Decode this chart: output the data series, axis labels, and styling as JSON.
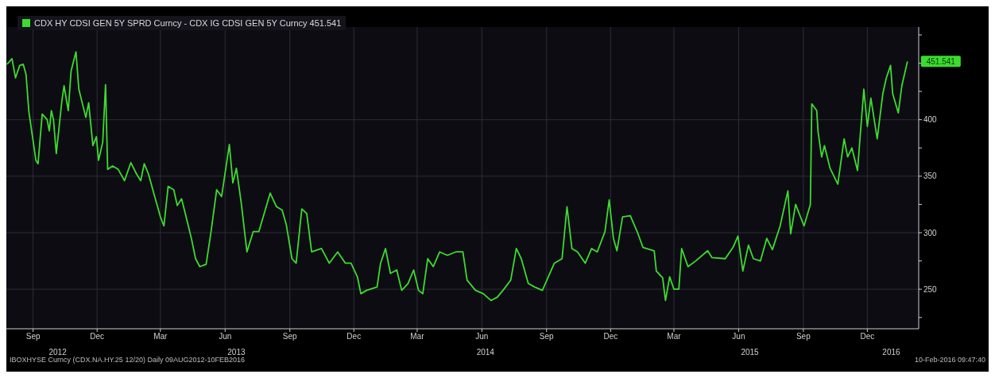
{
  "chart_data": {
    "type": "line",
    "legend": "top left",
    "grid": true,
    "marker": "none",
    "line_style": "solid",
    "xlim": [
      "2012-08-08",
      "2016-02-26"
    ],
    "xticks": [
      {
        "value": "2012-09-15",
        "label": "Sep"
      },
      {
        "value": "2012-12-15",
        "label": "Dec"
      },
      {
        "value": "2013-03-15",
        "label": "Mar"
      },
      {
        "value": "2013-06-15",
        "label": "Jun"
      },
      {
        "value": "2013-09-15",
        "label": "Sep"
      },
      {
        "value": "2013-12-15",
        "label": "Dec"
      },
      {
        "value": "2014-03-15",
        "label": "Mar"
      },
      {
        "value": "2014-06-15",
        "label": "Jun"
      },
      {
        "value": "2014-09-15",
        "label": "Sep"
      },
      {
        "value": "2014-12-15",
        "label": "Dec"
      },
      {
        "value": "2015-03-15",
        "label": "Mar"
      },
      {
        "value": "2015-06-15",
        "label": "Jun"
      },
      {
        "value": "2015-09-15",
        "label": "Sep"
      },
      {
        "value": "2015-12-15",
        "label": "Dec"
      }
    ],
    "x2lim": [
      "2012-08-08",
      "2016-02-26"
    ],
    "x2ticks": [
      {
        "value": "2012-10-20",
        "label": "2012"
      },
      {
        "value": "2013-07-01",
        "label": "2013"
      },
      {
        "value": "2014-06-20",
        "label": "2014"
      },
      {
        "value": "2015-07-01",
        "label": "2015"
      },
      {
        "value": "2016-01-18",
        "label": "2016"
      }
    ],
    "ylim": [
      215,
      482
    ],
    "yticks": [
      {
        "value": 225,
        "label": null
      },
      250,
      {
        "value": 275,
        "label": null
      },
      300,
      {
        "value": 325,
        "label": null
      },
      350,
      {
        "value": 375,
        "label": null
      },
      400,
      {
        "value": 425,
        "label": null
      },
      {
        "value": 450,
        "label": null
      },
      {
        "value": 475,
        "label": null
      }
    ],
    "annotations": [
      "IBOXHYSE Curncy (CDX.NA.HY.25 12/20) Daily 09AUG2012-10FEB2016",
      "10-Feb-2016 09:47:40",
      {
        "text": "451.541",
        "x": "2016-02-10",
        "y": 451.541
      }
    ],
    "series": [
      {
        "name": "CDX HY CDSI GEN 5Y SPRD Curncy - CDX IG CDSI GEN 5Y Curncy 451.541",
        "color": "#3bdc2e",
        "x": [
          "2012-08-09",
          "2012-08-16",
          "2012-08-21",
          "2012-08-27",
          "2012-09-01",
          "2012-09-05",
          "2012-09-09",
          "2012-09-19",
          "2012-09-22",
          "2012-09-28",
          "2012-10-05",
          "2012-10-08",
          "2012-10-11",
          "2012-10-14",
          "2012-10-18",
          "2012-10-26",
          "2012-10-29",
          "2012-11-04",
          "2012-11-08",
          "2012-11-15",
          "2012-11-19",
          "2012-11-25",
          "2012-11-29",
          "2012-12-03",
          "2012-12-09",
          "2012-12-14",
          "2012-12-17",
          "2012-12-23",
          "2012-12-27",
          "2012-12-30",
          "2013-01-06",
          "2013-01-14",
          "2013-01-23",
          "2013-02-01",
          "2013-02-09",
          "2013-02-15",
          "2013-02-20",
          "2013-02-26",
          "2013-03-06",
          "2013-03-15",
          "2013-03-20",
          "2013-03-26",
          "2013-04-03",
          "2013-04-08",
          "2013-04-14",
          "2013-04-19",
          "2013-04-28",
          "2013-05-04",
          "2013-05-10",
          "2013-05-19",
          "2013-05-26",
          "2013-06-03",
          "2013-06-10",
          "2013-06-16",
          "2013-06-21",
          "2013-06-26",
          "2013-07-01",
          "2013-07-08",
          "2013-07-16",
          "2013-07-25",
          "2013-08-02",
          "2013-08-11",
          "2013-08-18",
          "2013-08-27",
          "2013-09-04",
          "2013-09-10",
          "2013-09-18",
          "2013-09-24",
          "2013-10-02",
          "2013-10-09",
          "2013-10-16",
          "2013-10-30",
          "2013-11-10",
          "2013-11-22",
          "2013-12-03",
          "2013-12-11",
          "2013-12-20",
          "2013-12-25",
          "2014-01-02",
          "2014-01-17",
          "2014-01-22",
          "2014-01-29",
          "2014-02-05",
          "2014-02-14",
          "2014-02-21",
          "2014-03-02",
          "2014-03-10",
          "2014-03-17",
          "2014-03-23",
          "2014-03-30",
          "2014-04-07",
          "2014-04-16",
          "2014-04-27",
          "2014-05-09",
          "2014-05-19",
          "2014-05-25",
          "2014-06-06",
          "2014-06-17",
          "2014-06-28",
          "2014-07-07",
          "2014-07-15",
          "2014-07-26",
          "2014-08-03",
          "2014-08-10",
          "2014-08-20",
          "2014-08-29",
          "2014-09-09",
          "2014-09-26",
          "2014-10-07",
          "2014-10-14",
          "2014-10-21",
          "2014-10-29",
          "2014-11-09",
          "2014-11-18",
          "2014-11-26",
          "2014-12-07",
          "2014-12-13",
          "2014-12-19",
          "2014-12-24",
          "2015-01-01",
          "2015-01-12",
          "2015-01-23",
          "2015-01-30",
          "2015-02-15",
          "2015-02-18",
          "2015-02-27",
          "2015-03-03",
          "2015-03-09",
          "2015-03-15",
          "2015-03-22",
          "2015-03-26",
          "2015-04-04",
          "2015-04-15",
          "2015-05-02",
          "2015-05-08",
          "2015-05-27",
          "2015-06-07",
          "2015-06-14",
          "2015-06-21",
          "2015-06-29",
          "2015-07-06",
          "2015-07-16",
          "2015-07-25",
          "2015-08-02",
          "2015-08-13",
          "2015-08-24",
          "2015-08-28",
          "2015-09-04",
          "2015-09-16",
          "2015-09-25",
          "2015-09-27",
          "2015-10-04",
          "2015-10-06",
          "2015-10-11",
          "2015-10-15",
          "2015-10-23",
          "2015-11-03",
          "2015-11-12",
          "2015-11-17",
          "2015-11-23",
          "2015-12-01",
          "2015-12-10",
          "2015-12-15",
          "2015-12-20",
          "2015-12-29",
          "2016-01-06",
          "2016-01-11",
          "2016-01-17",
          "2016-01-20",
          "2016-01-28",
          "2016-02-02",
          "2016-02-10"
        ],
        "values": [
          449,
          454,
          437,
          448,
          449,
          440,
          407,
          364,
          361,
          405,
          400,
          390,
          408,
          400,
          370,
          417,
          430,
          408,
          443,
          460,
          427,
          412,
          402,
          415,
          377,
          385,
          364,
          380,
          431,
          356,
          359,
          356,
          346,
          362,
          352,
          346,
          361,
          352,
          334,
          314,
          306,
          341,
          338,
          324,
          330,
          318,
          295,
          277,
          270,
          272,
          301,
          338,
          332,
          357,
          378,
          344,
          357,
          326,
          283,
          301,
          301,
          320,
          335,
          323,
          320,
          307,
          277,
          273,
          321,
          317,
          283,
          286,
          273,
          283,
          273,
          273,
          261,
          246,
          249,
          252,
          273,
          286,
          264,
          267,
          249,
          255,
          267,
          249,
          246,
          277,
          270,
          283,
          280,
          283,
          283,
          258,
          249,
          246,
          240,
          243,
          249,
          258,
          286,
          277,
          255,
          252,
          249,
          273,
          277,
          323,
          286,
          283,
          273,
          286,
          283,
          301,
          329,
          295,
          284,
          314,
          315,
          299,
          287,
          284,
          266,
          260,
          240,
          261,
          250,
          250,
          286,
          270,
          275,
          284,
          278,
          277,
          287,
          297,
          266,
          289,
          277,
          275,
          295,
          285,
          306,
          337,
          299,
          325,
          306,
          325,
          414,
          408,
          389,
          367,
          377,
          357,
          343,
          383,
          367,
          375,
          355,
          427,
          394,
          419,
          383,
          423,
          437,
          448,
          423,
          406,
          430,
          451.541
        ]
      }
    ]
  }
}
